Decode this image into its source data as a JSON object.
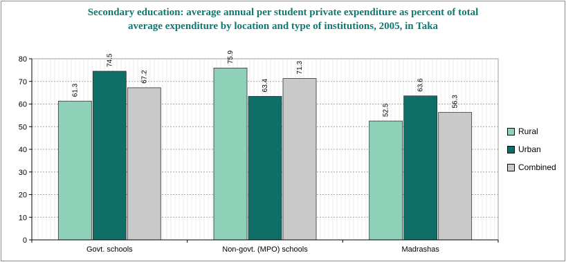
{
  "chart_data": {
    "type": "bar",
    "title_lines": [
      "Secondary education: average annual per student private expenditure as percent of total",
      "average expenditure by location and type of institutions, 2005, in Taka"
    ],
    "categories": [
      "Govt. schools",
      "Non-govt. (MPO) schools",
      "Madrashas"
    ],
    "series": [
      {
        "name": "Rural",
        "values": [
          61.3,
          75.9,
          52.5
        ],
        "labels": [
          "61.3",
          "75.9",
          "52.5"
        ],
        "color": "#8fd1b8"
      },
      {
        "name": "Urban",
        "values": [
          74.5,
          63.4,
          63.6
        ],
        "labels": [
          "74.5",
          "63.4",
          "63.6"
        ],
        "color": "#0f6f67"
      },
      {
        "name": "Combined",
        "values": [
          67.2,
          71.3,
          56.3
        ],
        "labels": [
          "67.2",
          "71.3",
          "56.3"
        ],
        "color": "#c9c9c9"
      }
    ],
    "yticks": [
      "0",
      "10",
      "20",
      "30",
      "40",
      "50",
      "60",
      "70",
      "80"
    ],
    "ylim": [
      0,
      80
    ],
    "legend_position": "right",
    "grid": true
  }
}
